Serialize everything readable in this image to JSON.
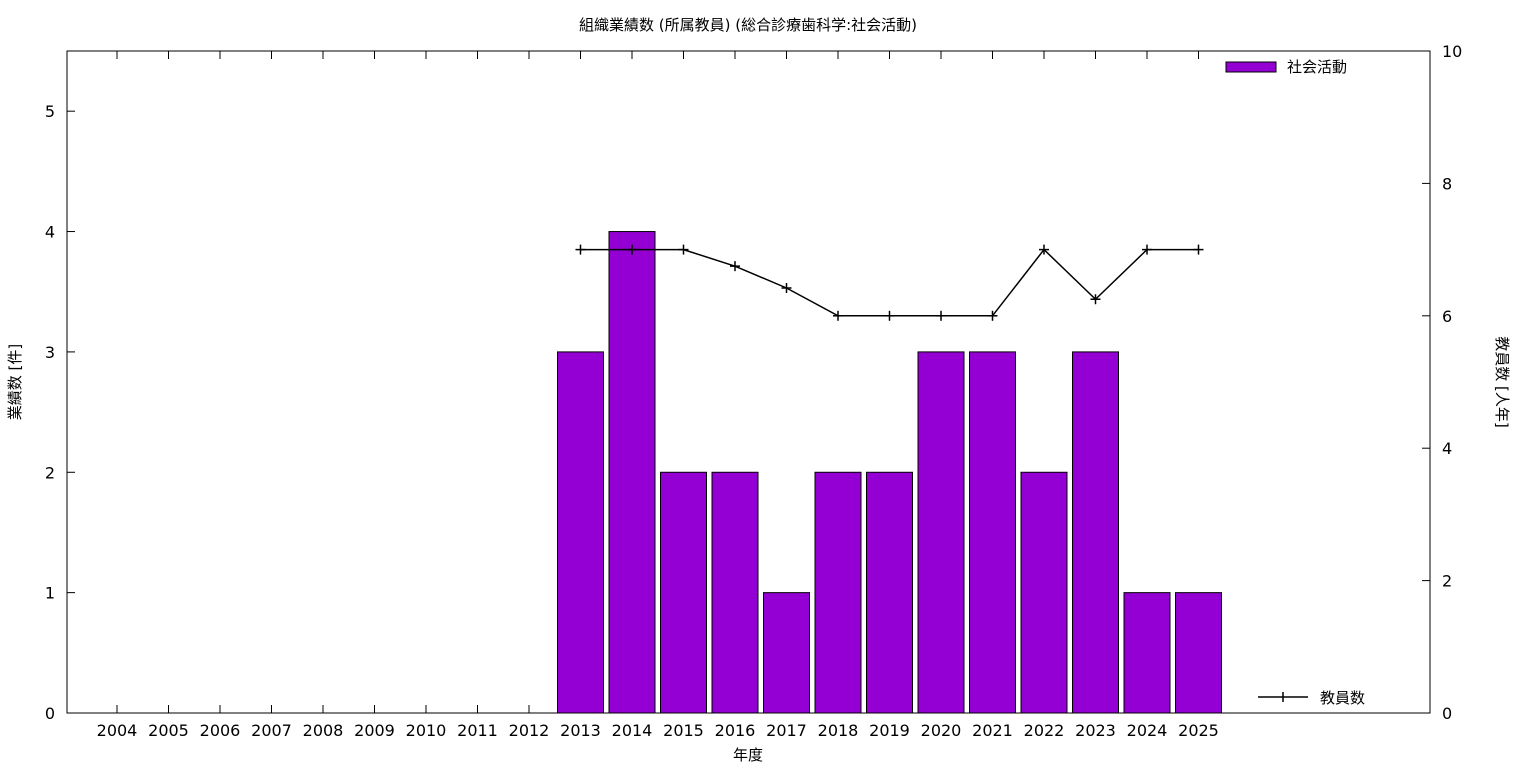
{
  "chart_data": {
    "type": "bar",
    "title": "組織業績数 (所属教員) (総合診療歯科学:社会活動)",
    "xlabel": "年度",
    "ylabel": "業績数 [件]",
    "y2label": "教員数 [人年]",
    "categories": [
      "2004",
      "2005",
      "2006",
      "2007",
      "2008",
      "2009",
      "2010",
      "2011",
      "2012",
      "2013",
      "2014",
      "2015",
      "2016",
      "2017",
      "2018",
      "2019",
      "2020",
      "2021",
      "2022",
      "2023",
      "2024",
      "2025"
    ],
    "series": [
      {
        "name": "社会活動",
        "kind": "bar",
        "axis": "left",
        "color": "#9400d3",
        "values": [
          null,
          null,
          null,
          null,
          null,
          null,
          null,
          null,
          null,
          3,
          4,
          2,
          2,
          1,
          2,
          2,
          3,
          3,
          2,
          3,
          1,
          1
        ]
      },
      {
        "name": "教員数",
        "kind": "line",
        "axis": "right",
        "color": "#000000",
        "values": [
          null,
          null,
          null,
          null,
          null,
          null,
          null,
          null,
          null,
          7,
          7,
          7,
          6.75,
          6.42,
          6,
          6,
          6,
          6,
          7,
          6.25,
          7,
          7
        ]
      }
    ],
    "ylim": [
      0,
      5.5
    ],
    "yticks": [
      0,
      1,
      2,
      3,
      4,
      5
    ],
    "y2lim": [
      0,
      10
    ],
    "y2ticks": [
      0,
      2,
      4,
      6,
      8,
      10
    ],
    "grid": false,
    "legend_bar_position": "top-right",
    "legend_line_position": "bottom-right"
  }
}
